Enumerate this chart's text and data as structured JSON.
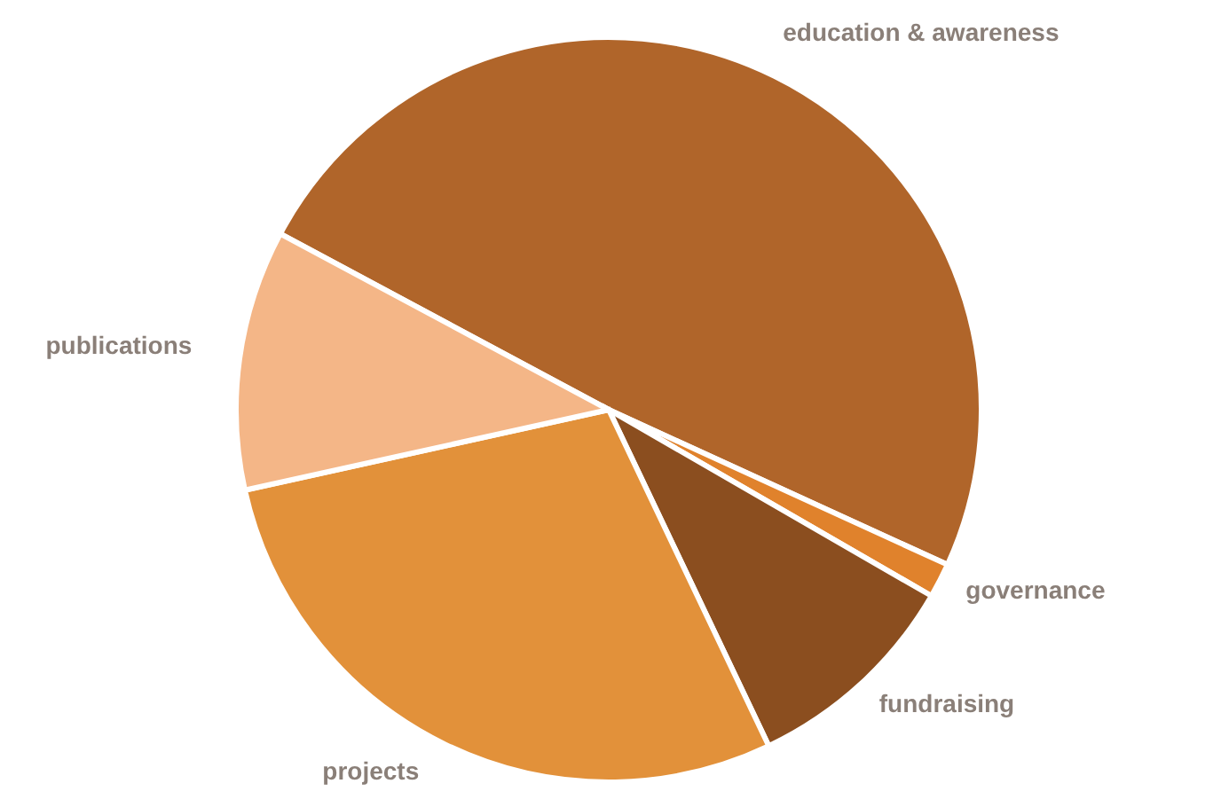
{
  "chart_data": {
    "type": "pie",
    "categories": [
      "education & awareness",
      "governance",
      "fundraising",
      "projects",
      "publications"
    ],
    "values": [
      49,
      1.5,
      9.6,
      28.6,
      11.3
    ],
    "colors": [
      "#b0652a",
      "#e0822c",
      "#8b4e1f",
      "#e2913a",
      "#f4b687"
    ],
    "legend": false
  }
}
